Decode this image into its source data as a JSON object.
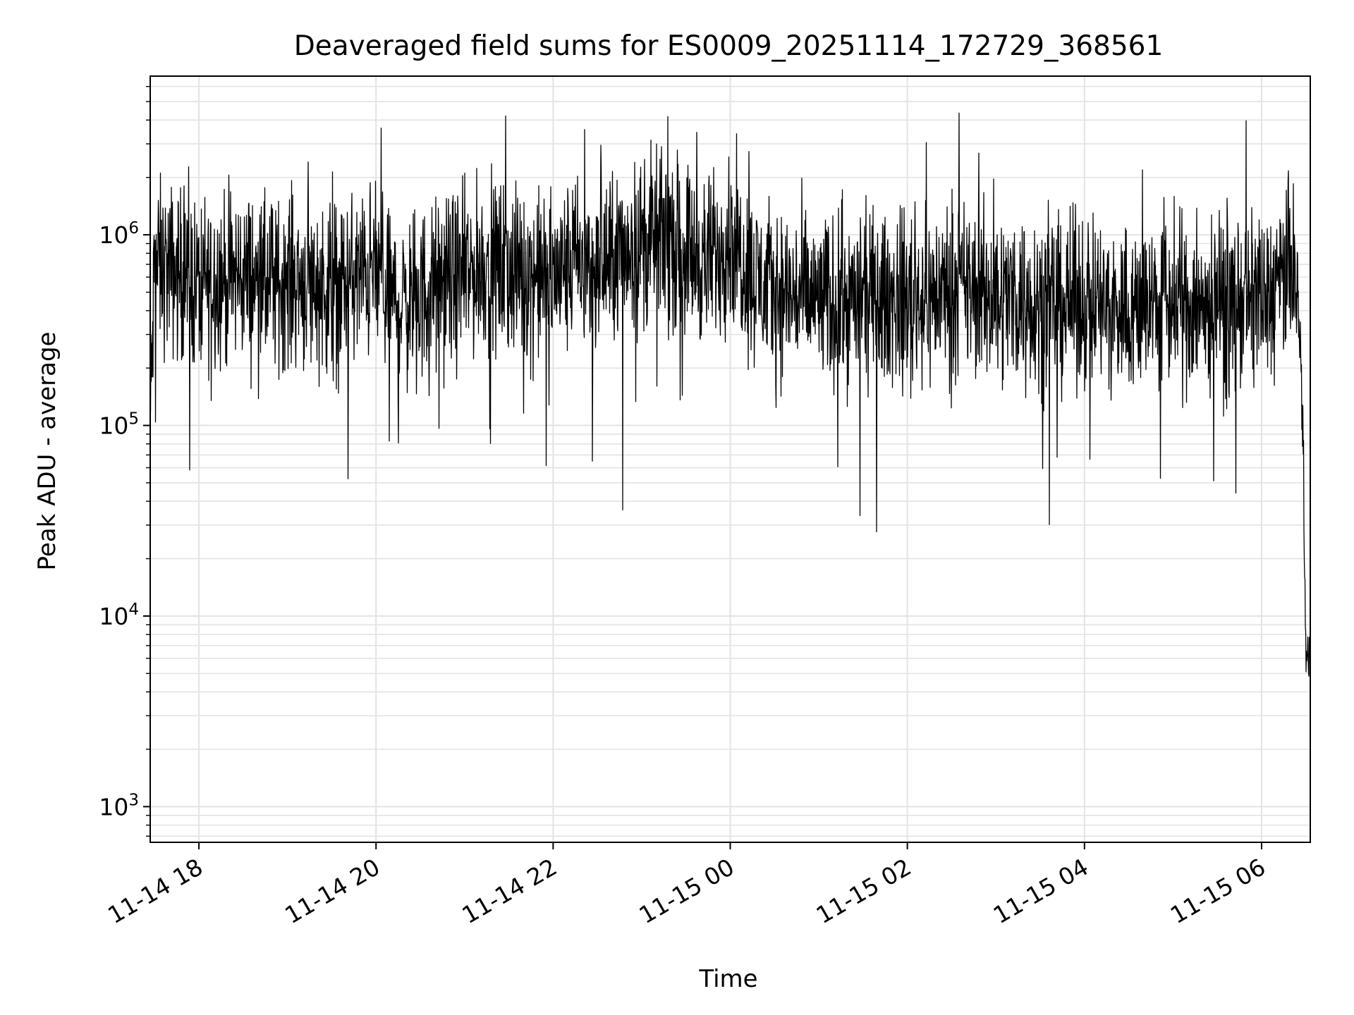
{
  "chart_data": {
    "type": "line",
    "title": "Deaveraged field sums for ES0009_20251114_172729_368561",
    "xlabel": "Time",
    "ylabel": "Peak ADU - average",
    "y_scale": "log",
    "ylim": [
      650,
      6800000
    ],
    "xlim": [
      "2025-11-14 17:27",
      "2025-11-15 06:33"
    ],
    "grid": true,
    "line_color": "#000000",
    "x_ticks": [
      {
        "value": "2025-11-14 18:00",
        "label": "11-14 18"
      },
      {
        "value": "2025-11-14 20:00",
        "label": "11-14 20"
      },
      {
        "value": "2025-11-14 22:00",
        "label": "11-14 22"
      },
      {
        "value": "2025-11-15 00:00",
        "label": "11-15 00"
      },
      {
        "value": "2025-11-15 02:00",
        "label": "11-15 02"
      },
      {
        "value": "2025-11-15 04:00",
        "label": "11-15 04"
      },
      {
        "value": "2025-11-15 06:00",
        "label": "11-15 06"
      }
    ],
    "y_ticks": [
      {
        "value": 1000,
        "mantissa": "10",
        "exp": "3"
      },
      {
        "value": 10000,
        "mantissa": "10",
        "exp": "4"
      },
      {
        "value": 100000,
        "mantissa": "10",
        "exp": "5"
      },
      {
        "value": 1000000,
        "mantissa": "10",
        "exp": "6"
      }
    ],
    "series": [
      {
        "x": [
          "2025-11-14 17:27",
          "2025-11-14 17:30",
          "2025-11-14 17:40",
          "2025-11-14 17:50",
          "2025-11-14 18:00",
          "2025-11-14 18:10",
          "2025-11-14 18:20",
          "2025-11-14 18:30",
          "2025-11-14 18:40",
          "2025-11-14 18:50",
          "2025-11-14 19:00",
          "2025-11-14 19:15",
          "2025-11-14 19:30",
          "2025-11-14 19:45",
          "2025-11-14 20:00",
          "2025-11-14 20:15",
          "2025-11-14 20:30",
          "2025-11-14 20:45",
          "2025-11-14 21:00",
          "2025-11-14 21:15",
          "2025-11-14 21:30",
          "2025-11-14 21:45",
          "2025-11-14 22:00",
          "2025-11-14 22:15",
          "2025-11-14 22:30",
          "2025-11-14 22:45",
          "2025-11-14 23:00",
          "2025-11-14 23:15",
          "2025-11-14 23:30",
          "2025-11-14 23:45",
          "2025-11-15 00:00",
          "2025-11-15 00:15",
          "2025-11-15 00:30",
          "2025-11-15 00:45",
          "2025-11-15 01:00",
          "2025-11-15 01:15",
          "2025-11-15 01:30",
          "2025-11-15 01:45",
          "2025-11-15 02:00",
          "2025-11-15 02:15",
          "2025-11-15 02:30",
          "2025-11-15 02:45",
          "2025-11-15 03:00",
          "2025-11-15 03:15",
          "2025-11-15 03:30",
          "2025-11-15 03:45",
          "2025-11-15 04:00",
          "2025-11-15 04:15",
          "2025-11-15 04:30",
          "2025-11-15 04:45",
          "2025-11-15 05:00",
          "2025-11-15 05:15",
          "2025-11-15 05:30",
          "2025-11-15 05:45",
          "2025-11-15 06:00",
          "2025-11-15 06:10",
          "2025-11-15 06:20",
          "2025-11-15 06:25",
          "2025-11-15 06:28",
          "2025-11-15 06:30",
          "2025-11-15 06:33"
        ],
        "y": [
          100000,
          700000,
          650000,
          600000,
          550000,
          600000,
          580000,
          620000,
          550000,
          520000,
          600000,
          560000,
          520000,
          580000,
          650000,
          420000,
          480000,
          560000,
          600000,
          700000,
          650000,
          620000,
          600000,
          700000,
          650000,
          800000,
          900000,
          950000,
          850000,
          700000,
          1000000,
          600000,
          500000,
          480000,
          450000,
          430000,
          470000,
          450000,
          480000,
          460000,
          550000,
          500000,
          470000,
          480000,
          460000,
          430000,
          450000,
          420000,
          400000,
          450000,
          430000,
          420000,
          420000,
          430000,
          450000,
          500000,
          700000,
          400000,
          100000,
          6000,
          5500
        ]
      }
    ]
  }
}
